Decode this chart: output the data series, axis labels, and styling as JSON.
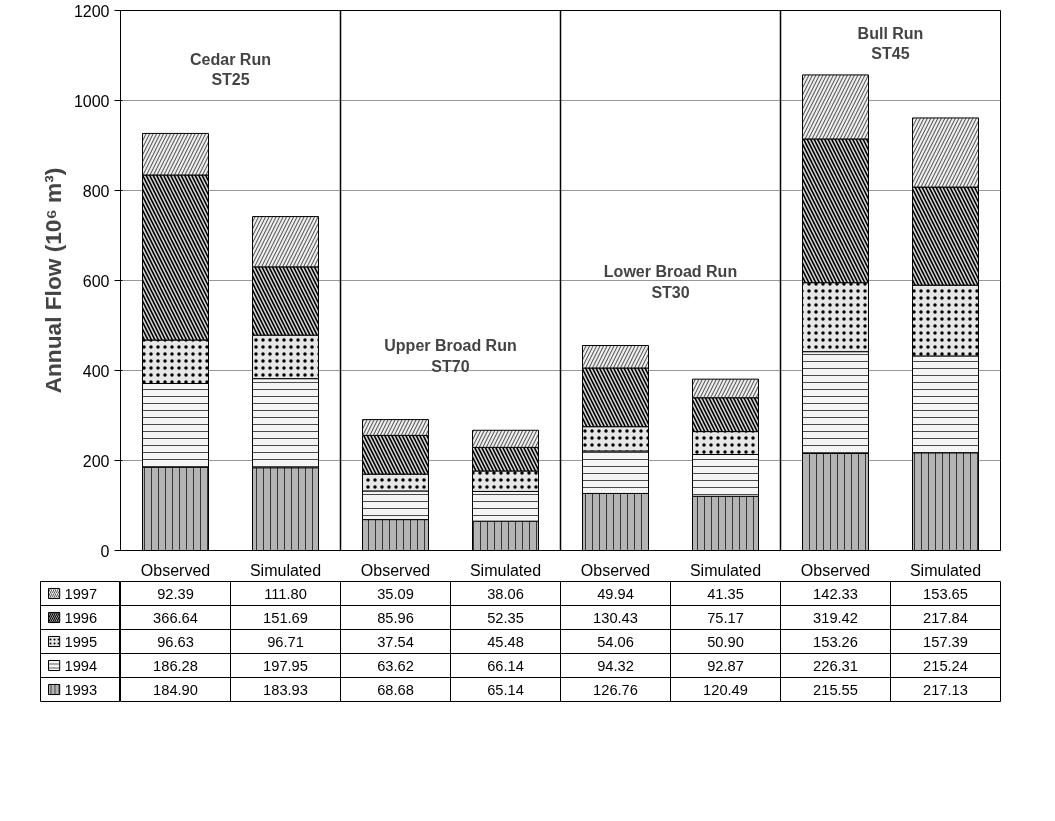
{
  "chart_data": {
    "type": "bar",
    "stacked": true,
    "ylabel": "Annual Flow (10⁶ m³)",
    "categories": [
      "Observed",
      "Simulated",
      "Observed",
      "Simulated",
      "Observed",
      "Simulated",
      "Observed",
      "Simulated"
    ],
    "ylim": [
      0,
      1200
    ],
    "yticks": [
      0,
      200,
      400,
      600,
      800,
      1000,
      1200
    ],
    "grid": "y",
    "legend": "bottom left",
    "annotations": [
      "Cedar Run\nST25",
      "Upper Broad Run\nST70",
      "Lower Broad Run\nST30",
      "Bull Run\nST45"
    ],
    "series": [
      {
        "name": "1993",
        "color": "#b4b4b4",
        "values": [
          184.9,
          183.93,
          68.68,
          65.14,
          126.76,
          120.49,
          215.55,
          217.13
        ],
        "value_labels": [
          "184.90",
          "183.93",
          "68.68",
          "65.14",
          "126.76",
          "120.49",
          "215.55",
          "217.13"
        ]
      },
      {
        "name": "1994",
        "color": "#f4f4f4",
        "values": [
          186.28,
          197.95,
          63.62,
          66.14,
          94.32,
          92.87,
          226.31,
          215.24
        ],
        "value_labels": [
          "186.28",
          "197.95",
          "63.62",
          "66.14",
          "94.32",
          "92.87",
          "226.31",
          "215.24"
        ]
      },
      {
        "name": "1995",
        "color": "#e6e6e6",
        "values": [
          96.63,
          96.71,
          37.54,
          45.48,
          54.06,
          50.9,
          153.26,
          157.39
        ],
        "value_labels": [
          "96.63",
          "96.71",
          "37.54",
          "45.48",
          "54.06",
          "50.90",
          "153.26",
          "157.39"
        ]
      },
      {
        "name": "1996",
        "color": "#d4d4d4",
        "values": [
          366.64,
          151.69,
          85.96,
          52.35,
          130.43,
          75.17,
          319.42,
          217.84
        ],
        "value_labels": [
          "366.64",
          "151.69",
          "85.96",
          "52.35",
          "130.43",
          "75.17",
          "319.42",
          "217.84"
        ]
      },
      {
        "name": "1997",
        "color": "#ececec",
        "values": [
          92.39,
          111.8,
          35.09,
          38.06,
          49.94,
          41.35,
          142.33,
          153.65
        ],
        "value_labels": [
          "92.39",
          "111.80",
          "35.09",
          "38.06",
          "49.94",
          "41.35",
          "142.33",
          "153.65"
        ]
      }
    ]
  }
}
